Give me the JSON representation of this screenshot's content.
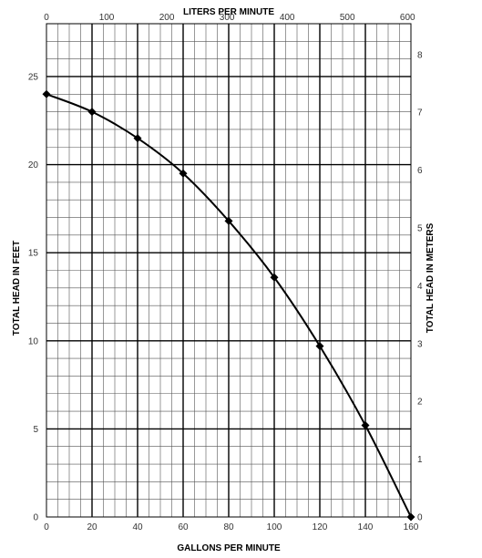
{
  "chart_data": {
    "type": "line",
    "title": "",
    "xlabel": "GALLONS PER MINUTE",
    "ylabel": "TOTAL HEAD IN FEET",
    "x2label": "LITERS PER MINUTE",
    "y2label": "TOTAL HEAD IN METERS",
    "xlim": [
      0,
      160
    ],
    "ylim": [
      0,
      28
    ],
    "x2lim": [
      0,
      605.7
    ],
    "y2lim": [
      0,
      8.534
    ],
    "xticks": [
      0,
      20,
      40,
      60,
      80,
      100,
      120,
      140,
      160
    ],
    "yticks": [
      0,
      5,
      10,
      15,
      20,
      25
    ],
    "x2ticks": [
      0,
      100,
      200,
      300,
      400,
      500,
      600
    ],
    "y2ticks": [
      0,
      1,
      2,
      3,
      4,
      5,
      6,
      7,
      8
    ],
    "grid": true,
    "series": [
      {
        "x": [
          0,
          20,
          40,
          60,
          80,
          100,
          120,
          140,
          160
        ],
        "y": [
          24,
          23,
          21.5,
          19.5,
          16.8,
          13.6,
          9.7,
          5.2,
          0
        ],
        "marker": "diamond",
        "color": "#000000"
      }
    ]
  }
}
